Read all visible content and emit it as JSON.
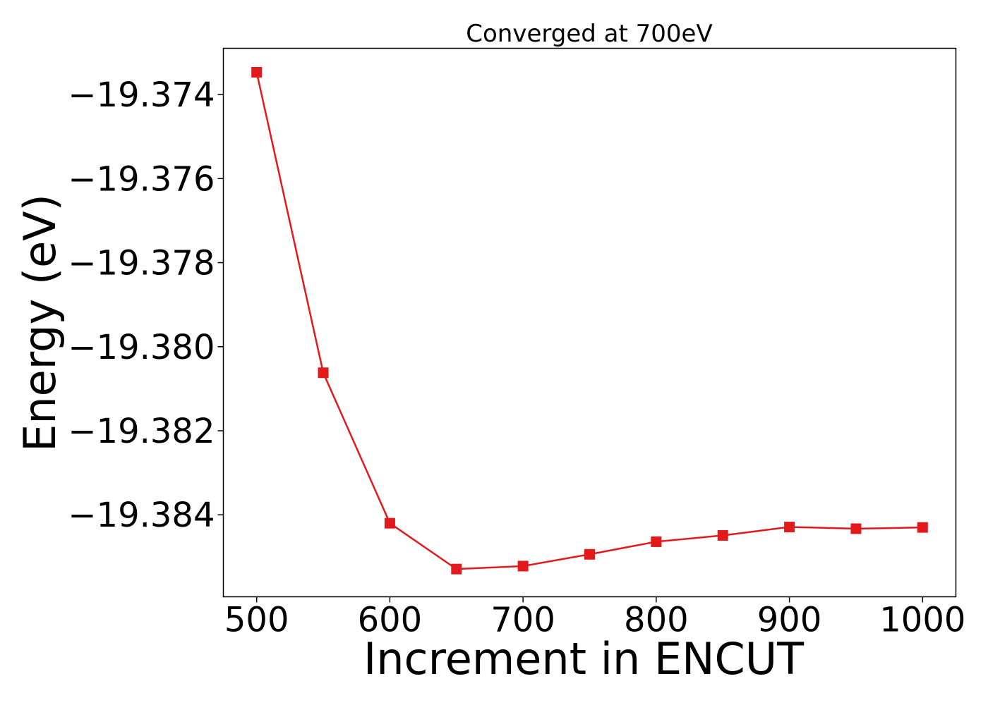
{
  "chart_data": {
    "type": "line",
    "title": "Converged at 700eV",
    "xlabel": "Increment in ENCUT",
    "ylabel": "Energy (eV)",
    "xlim": [
      475,
      1025
    ],
    "ylim": [
      -19.38595,
      -19.3729
    ],
    "x_ticks": [
      500,
      600,
      700,
      800,
      900,
      1000
    ],
    "y_ticks": [
      -19.374,
      -19.376,
      -19.378,
      -19.38,
      -19.382,
      -19.384
    ],
    "y_tick_labels": [
      "−19.374",
      "−19.376",
      "−19.378",
      "−19.380",
      "−19.382",
      "−19.384"
    ],
    "grid": false,
    "series": [
      {
        "color": "#e31a1c",
        "marker": "square",
        "x": [
          500,
          550,
          600,
          650,
          700,
          750,
          800,
          850,
          900,
          950,
          1000
        ],
        "y": [
          -19.37347,
          -19.38062,
          -19.3842,
          -19.38529,
          -19.38522,
          -19.38494,
          -19.38464,
          -19.38449,
          -19.38429,
          -19.38433,
          -19.3843
        ]
      }
    ]
  }
}
